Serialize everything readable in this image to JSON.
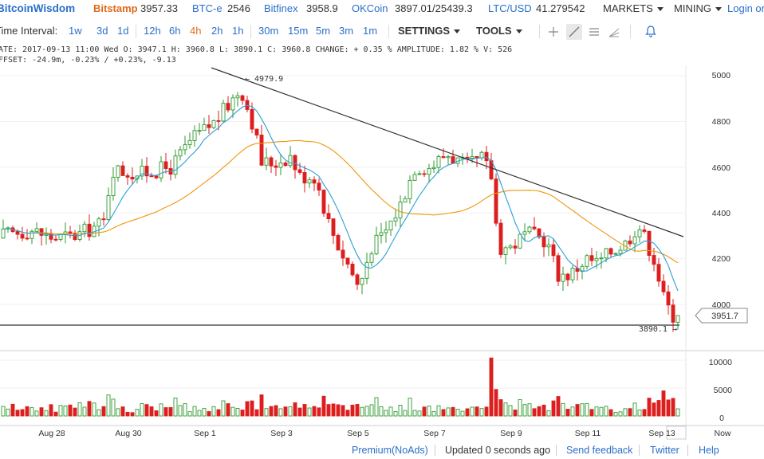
{
  "header": {
    "logo": "BitcoinWisdom",
    "exchanges": [
      {
        "name": "Bitstamp",
        "price": "3957.33"
      },
      {
        "name": "BTC-e",
        "price": "2546"
      },
      {
        "name": "Bitfinex",
        "price": "3958.9"
      },
      {
        "name": "OKCoin",
        "price": "3897.01/25439.3"
      },
      {
        "name": "LTC/USD",
        "price": "41.279542"
      }
    ],
    "markets_label": "MARKETS",
    "mining_label": "MINING",
    "login_label": "Login or"
  },
  "toolbar": {
    "interval_label": "Time Interval:",
    "intervals": [
      "1w",
      "3d",
      "1d",
      "12h",
      "6h",
      "4h",
      "2h",
      "1h",
      "30m",
      "15m",
      "5m",
      "3m",
      "1m"
    ],
    "active_interval": "4h",
    "settings_label": "SETTINGS",
    "tools_label": "TOOLS"
  },
  "info": {
    "line1": "ATE: 2017-09-13 11:00 Wed    O: 3947.1    H: 3960.8    L: 3890.1    C: 3960.8    CHANGE: + 0.35 %    AMPLITUDE: 1.82 %    V: 526",
    "line2": "FFSET: -24.9m, -0.23% / +0.23%, -9.13"
  },
  "chart_data": {
    "type": "candlestick",
    "price_ticks": [
      "5000",
      "4800",
      "4600",
      "4400",
      "4200",
      "4000"
    ],
    "volume_ticks": [
      "10000",
      "5000",
      "0"
    ],
    "x_labels": [
      "Aug 28",
      "Aug 30",
      "Sep 1",
      "Sep 3",
      "Sep 5",
      "Sep 7",
      "Sep 9",
      "Sep 11",
      "Sep 13",
      "Now"
    ],
    "high_marker": "← 4979.9",
    "low_marker": "3890.1 →",
    "current_price": "3951.7",
    "price_range": [
      3890.1,
      4979.9
    ],
    "colors": {
      "up": "#2e9a2e",
      "down": "#dd1e1e",
      "ma_fast": "#2a9fd6",
      "ma_slow": "#f0960a",
      "trendline": "#333333"
    }
  },
  "footer": {
    "premium": "Premium(NoAds)",
    "updated": "Updated 0 seconds ago",
    "feedback": "Send feedback",
    "twitter": "Twitter",
    "help": "Help"
  }
}
